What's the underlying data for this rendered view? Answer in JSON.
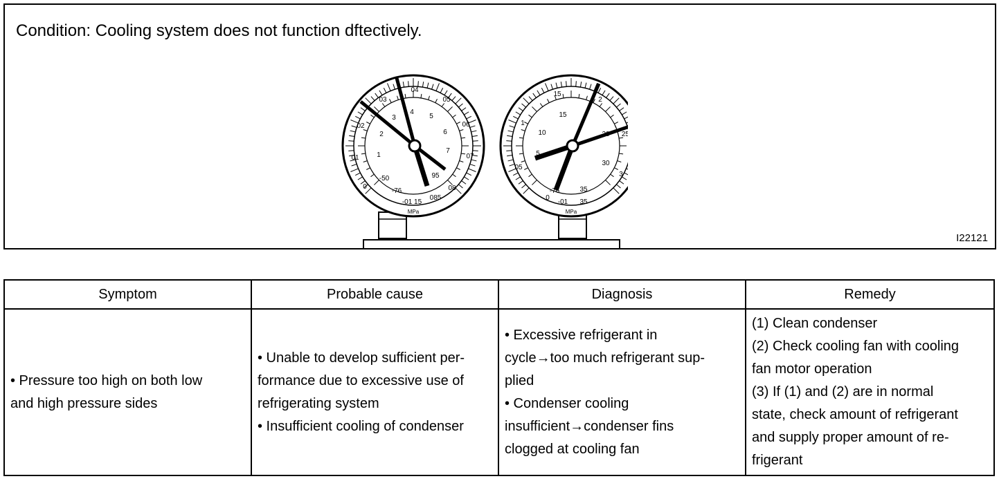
{
  "figure": {
    "condition": "Condition: Cooling system does not function dftectively.",
    "figure_id": "I22121",
    "low_gauge": {
      "outer_scale": [
        "03",
        "04",
        "05",
        "06",
        "07",
        "08",
        "085",
        "02",
        "01",
        "0"
      ],
      "inner_scale": [
        "1",
        "2",
        "3",
        "4",
        "5",
        "6",
        "7",
        "-50",
        "-76",
        "95"
      ],
      "unit_label": "MPa",
      "bottom_label": "-01 15"
    },
    "high_gauge": {
      "outer_scale": [
        "15",
        "2",
        "25",
        "3",
        "35",
        "1",
        "05",
        "0"
      ],
      "inner_scale": [
        "15",
        "10",
        "5",
        "20",
        "30",
        "35",
        "-76"
      ],
      "unit_label": "MPa",
      "bottom_label": "-01"
    }
  },
  "table": {
    "headers": [
      "Symptom",
      "Probable cause",
      "Diagnosis",
      "Remedy"
    ],
    "symptom": [
      "• Pressure too high on both low",
      "and high pressure sides"
    ],
    "cause": [
      "• Unable to develop sufficient per-",
      "formance due to excessive use of",
      "refrigerating system",
      "• Insufficient cooling of condenser"
    ],
    "diagnosis": [
      "• Excessive refrigerant in",
      "cycle→too much refrigerant sup-",
      "plied",
      "• Condenser cooling",
      "insufficient→condenser fins",
      "clogged at cooling fan"
    ],
    "remedy": [
      "(1) Clean condenser",
      "(2) Check cooling fan with cooling",
      "fan motor operation",
      "(3) If (1) and (2) are in normal",
      "state, check amount of refrigerant",
      "and supply proper amount of re-",
      "frigerant"
    ]
  }
}
